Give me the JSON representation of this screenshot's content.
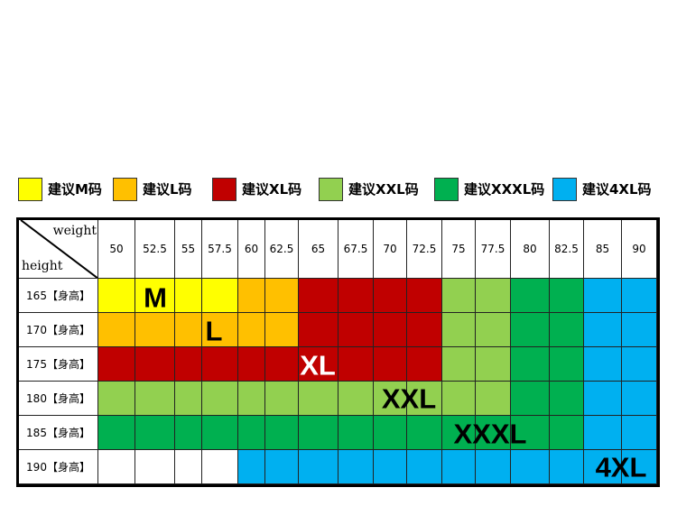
{
  "legend": [
    {
      "label": "建议M码",
      "color": "#ffff00"
    },
    {
      "label": "建议L码",
      "color": "#ffc000"
    },
    {
      "label": "建议XL码",
      "color": "#c00000"
    },
    {
      "label": "建议XXL码",
      "color": "#92d050"
    },
    {
      "label": "建议XXXL码",
      "color": "#00b050"
    },
    {
      "label": "建议4XL码",
      "color": "#00b0f0"
    }
  ],
  "table": {
    "corner_top": "weight",
    "corner_bottom": "height",
    "weights": [
      50,
      52.5,
      55,
      57.5,
      60,
      62.5,
      65,
      67.5,
      70,
      72.5,
      75,
      77.5,
      80,
      82.5,
      85,
      90
    ],
    "palette": {
      "Y": "#ffff00",
      "O": "#ffc000",
      "R": "#c00000",
      "l": "#92d050",
      "G": "#00b050",
      "B": "#00b0f0",
      "W": "#ffffff"
    },
    "rows": [
      {
        "height": "165【身高】",
        "cells": "YYYYOORRRRllGGBB",
        "label": "M"
      },
      {
        "height": "170【身高】",
        "cells": "OOOOOORRRRllGGBB",
        "label": "L"
      },
      {
        "height": "175【身高】",
        "cells": "RRRRRRRRRRllGGBB",
        "label": "XL"
      },
      {
        "height": "180【身高】",
        "cells": "llllllllllllGGBB",
        "label": "XXL"
      },
      {
        "height": "185【身高】",
        "cells": "GGGGGGGGGGGGGGBB",
        "label": "XXXL"
      },
      {
        "height": "190【身高】",
        "cells": "WWWWBBBBBBBBBBBB",
        "label": "4XL"
      }
    ]
  }
}
